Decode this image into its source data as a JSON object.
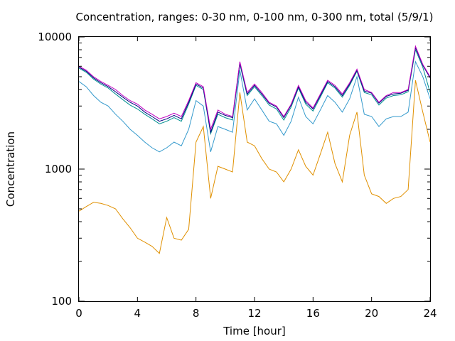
{
  "chart_data": {
    "type": "line",
    "title": "Concentration, ranges: 0-30 nm, 0-100 nm, 0-300 nm, total (5/9/1)",
    "xlabel": "Time [hour]",
    "ylabel": "Concentration",
    "xlim": [
      0,
      24
    ],
    "ylim": [
      100,
      10000
    ],
    "yscale": "log",
    "x_ticks": [
      0,
      4,
      8,
      12,
      16,
      20,
      24
    ],
    "x_tick_labels": [
      "0",
      "4",
      "8",
      "12",
      "16",
      "20",
      "24"
    ],
    "y_ticks": [
      100,
      1000,
      10000
    ],
    "y_tick_labels": [
      "100",
      "1000",
      "10000"
    ],
    "grid": false,
    "legend": "none",
    "series": [
      {
        "color": "#c000c0",
        "x": [
          0,
          0.5,
          1,
          1.5,
          2,
          2.5,
          3,
          3.5,
          4,
          4.5,
          5,
          5.5,
          6,
          6.5,
          7,
          7.5,
          8,
          8.5,
          9,
          9.5,
          10,
          10.5,
          11,
          11.5,
          12,
          12.5,
          13,
          13.5,
          14,
          14.5,
          15,
          15.5,
          16,
          16.5,
          17,
          17.5,
          18,
          18.5,
          19,
          19.5,
          20,
          20.5,
          21,
          21.5,
          22,
          22.5,
          23,
          23.5,
          24
        ],
        "values": [
          6000,
          5600,
          5000,
          4600,
          4300,
          4000,
          3600,
          3300,
          3100,
          2800,
          2600,
          2400,
          2500,
          2650,
          2500,
          3300,
          4500,
          4200,
          2000,
          2800,
          2600,
          2500,
          6500,
          3800,
          4400,
          3800,
          3200,
          3000,
          2500,
          3100,
          4300,
          3300,
          2900,
          3700,
          4700,
          4300,
          3700,
          4500,
          5700,
          4000,
          3800,
          3200,
          3600,
          3800,
          3800,
          4000,
          8500,
          6200,
          5000
        ]
      },
      {
        "color": "#000080",
        "x": [
          0,
          0.5,
          1,
          1.5,
          2,
          2.5,
          3,
          3.5,
          4,
          4.5,
          5,
          5.5,
          6,
          6.5,
          7,
          7.5,
          8,
          8.5,
          9,
          9.5,
          10,
          10.5,
          11,
          11.5,
          12,
          12.5,
          13,
          13.5,
          14,
          14.5,
          15,
          15.5,
          16,
          16.5,
          17,
          17.5,
          18,
          18.5,
          19,
          19.5,
          20,
          20.5,
          21,
          21.5,
          22,
          22.5,
          23,
          23.5,
          24
        ],
        "values": [
          5900,
          5500,
          4900,
          4500,
          4200,
          3850,
          3500,
          3200,
          3000,
          2700,
          2500,
          2300,
          2400,
          2550,
          2400,
          3200,
          4400,
          4100,
          1900,
          2700,
          2550,
          2450,
          6400,
          3700,
          4300,
          3700,
          3150,
          2950,
          2450,
          3050,
          4200,
          3200,
          2850,
          3600,
          4600,
          4200,
          3600,
          4400,
          5600,
          3900,
          3750,
          3150,
          3550,
          3700,
          3750,
          3950,
          8300,
          6100,
          4900
        ]
      },
      {
        "color": "#009090",
        "x": [
          0,
          0.5,
          1,
          1.5,
          2,
          2.5,
          3,
          3.5,
          4,
          4.5,
          5,
          5.5,
          6,
          6.5,
          7,
          7.5,
          8,
          8.5,
          9,
          9.5,
          10,
          10.5,
          11,
          11.5,
          12,
          12.5,
          13,
          13.5,
          14,
          14.5,
          15,
          15.5,
          16,
          16.5,
          17,
          17.5,
          18,
          18.5,
          19,
          19.5,
          20,
          20.5,
          21,
          21.5,
          22,
          22.5,
          23,
          23.5,
          24
        ],
        "values": [
          5800,
          5400,
          4800,
          4400,
          4100,
          3700,
          3350,
          3050,
          2850,
          2600,
          2400,
          2200,
          2300,
          2450,
          2300,
          3100,
          4300,
          4000,
          1850,
          2600,
          2450,
          2350,
          6200,
          3600,
          4200,
          3600,
          3050,
          2850,
          2350,
          2950,
          4100,
          3100,
          2750,
          3500,
          4500,
          4100,
          3500,
          4300,
          5500,
          3800,
          3650,
          3050,
          3450,
          3600,
          3650,
          3850,
          8000,
          5900,
          3800
        ]
      },
      {
        "color": "#3399cc",
        "x": [
          0,
          0.5,
          1,
          1.5,
          2,
          2.5,
          3,
          3.5,
          4,
          4.5,
          5,
          5.5,
          6,
          6.5,
          7,
          7.5,
          8,
          8.5,
          9,
          9.5,
          10,
          10.5,
          11,
          11.5,
          12,
          12.5,
          13,
          13.5,
          14,
          14.5,
          15,
          15.5,
          16,
          16.5,
          17,
          17.5,
          18,
          18.5,
          19,
          19.5,
          20,
          20.5,
          21,
          21.5,
          22,
          22.5,
          23,
          23.5,
          24
        ],
        "values": [
          4600,
          4200,
          3600,
          3200,
          3000,
          2600,
          2300,
          2000,
          1800,
          1600,
          1450,
          1350,
          1450,
          1600,
          1500,
          2000,
          3300,
          3000,
          1350,
          2100,
          2000,
          1900,
          5600,
          2800,
          3400,
          2800,
          2300,
          2200,
          1800,
          2300,
          3500,
          2500,
          2200,
          2800,
          3600,
          3200,
          2700,
          3400,
          5000,
          2600,
          2500,
          2100,
          2400,
          2500,
          2500,
          2700,
          6500,
          5000,
          3400
        ]
      },
      {
        "color": "#e09000",
        "x": [
          0,
          0.5,
          1,
          1.5,
          2,
          2.5,
          3,
          3.5,
          4,
          4.5,
          5,
          5.5,
          6,
          6.5,
          7,
          7.5,
          8,
          8.5,
          9,
          9.5,
          10,
          10.5,
          11,
          11.5,
          12,
          12.5,
          13,
          13.5,
          14,
          14.5,
          15,
          15.5,
          16,
          16.5,
          17,
          17.5,
          18,
          18.5,
          19,
          19.5,
          20,
          20.5,
          21,
          21.5,
          22,
          22.5,
          23,
          23.5,
          24
        ],
        "values": [
          480,
          520,
          560,
          550,
          530,
          500,
          420,
          360,
          300,
          280,
          260,
          230,
          430,
          300,
          290,
          350,
          1600,
          2100,
          600,
          1050,
          1000,
          950,
          3800,
          1600,
          1500,
          1200,
          1000,
          950,
          800,
          1000,
          1400,
          1050,
          900,
          1300,
          1900,
          1100,
          800,
          1800,
          2700,
          900,
          650,
          620,
          550,
          600,
          620,
          700,
          4700,
          2700,
          1600
        ]
      }
    ]
  }
}
